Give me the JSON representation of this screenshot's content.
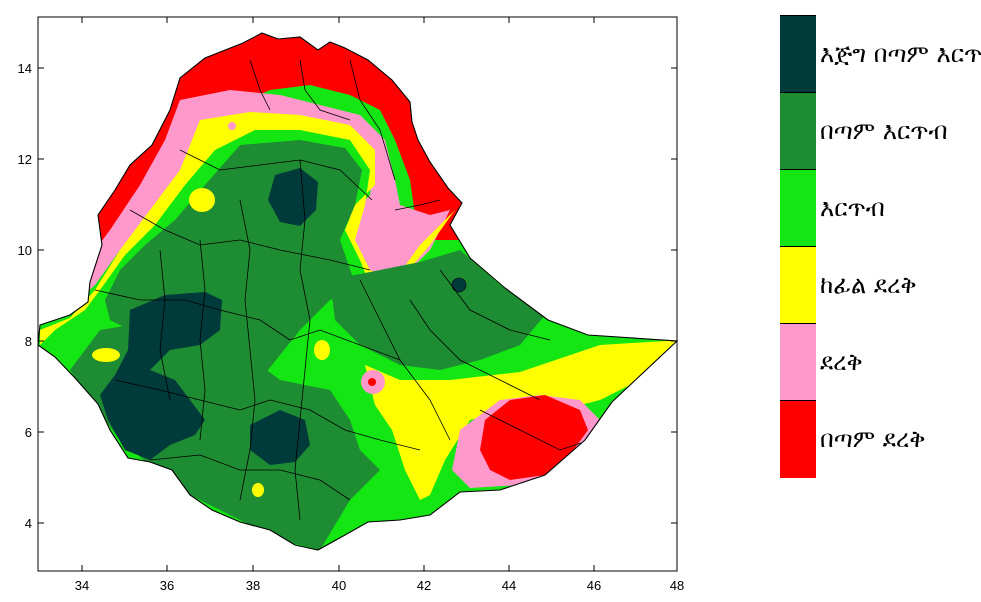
{
  "map": {
    "x_ticks": [
      "34",
      "36",
      "38",
      "40",
      "42",
      "44",
      "46",
      "48"
    ],
    "y_ticks": [
      "14",
      "12",
      "10",
      "8",
      "6",
      "4"
    ]
  },
  "legend": {
    "items": [
      {
        "label": "እጅግ በጣም እርጥብ",
        "color": "#003b3b"
      },
      {
        "label": "በጣም እርጥብ",
        "color": "#1e8c32"
      },
      {
        "label": "እርጥብ",
        "color": "#14e614"
      },
      {
        "label": "ከፊል ደረቅ",
        "color": "#ffff00"
      },
      {
        "label": "ደረቅ",
        "color": "#ff99cc"
      },
      {
        "label": "በጣም ደረቅ",
        "color": "#ff0000"
      }
    ]
  }
}
